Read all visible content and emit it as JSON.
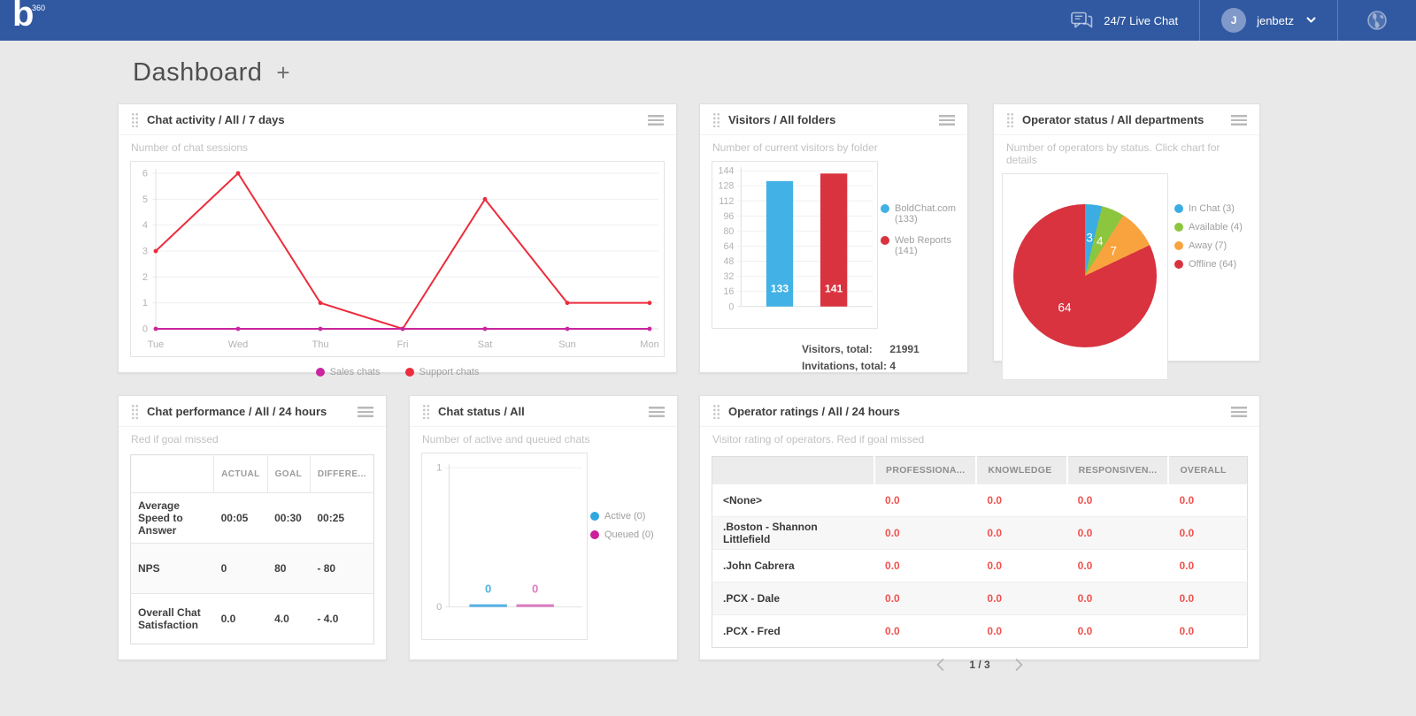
{
  "navbar": {
    "logo_b": "b",
    "logo_360": "360",
    "live_chat_label": "24/7 Live Chat",
    "user_initial": "J",
    "user_name": "jenbetz"
  },
  "page": {
    "title": "Dashboard",
    "add_button": "+"
  },
  "colors": {
    "navbar": "#3159a2",
    "page_bg": "#e9e9e9",
    "good": "#82c341",
    "bad": "#f0524e"
  },
  "widgets": {
    "chat_activity": {
      "title": "Chat activity / All / 7 days",
      "subtitle": "Number of chat sessions",
      "legend": [
        {
          "label": "Sales chats",
          "color": "#c9259f"
        },
        {
          "label": "Support chats",
          "color": "#ec2c3c"
        }
      ]
    },
    "visitors": {
      "title": "Visitors / All folders",
      "subtitle": "Number of current visitors by folder",
      "legend": [
        {
          "label": "BoldChat.com (133)",
          "color": "#41b1e6"
        },
        {
          "label": "Web Reports (141)",
          "color": "#d8333f"
        }
      ],
      "totals": [
        {
          "label": "Visitors, total:",
          "value": "21991"
        },
        {
          "label": "Invitations, total:",
          "value": "4"
        }
      ]
    },
    "operator_status": {
      "title": "Operator status / All departments",
      "subtitle": "Number of operators by status. Click chart for details",
      "legend": [
        {
          "label": "In Chat (3)",
          "color": "#3bade3"
        },
        {
          "label": "Available (4)",
          "color": "#8cc63f"
        },
        {
          "label": "Away (7)",
          "color": "#f8a33e"
        },
        {
          "label": "Offline (64)",
          "color": "#d8333f"
        }
      ]
    },
    "chat_performance": {
      "title": "Chat performance / All / 24 hours",
      "subtitle": "Red if goal missed",
      "columns": [
        "",
        "ACTUAL",
        "GOAL",
        "DIFFERE..."
      ],
      "rows": [
        {
          "label": "Average Speed to Answer",
          "actual": "00:05",
          "goal": "00:30",
          "diff": "00:25"
        },
        {
          "label": "NPS",
          "actual": "0",
          "goal": "80",
          "diff": "- 80"
        },
        {
          "label": "Overall Chat Satisfaction",
          "actual": "0.0",
          "goal": "4.0",
          "diff": "- 4.0"
        }
      ]
    },
    "chat_status": {
      "title": "Chat status / All",
      "subtitle": "Number of active and queued chats",
      "legend": [
        {
          "label": "Active (0)",
          "color": "#2fa8e0"
        },
        {
          "label": "Queued (0)",
          "color": "#cb1f9b"
        }
      ]
    },
    "operator_ratings": {
      "title": "Operator ratings / All / 24 hours",
      "subtitle": "Visitor rating of operators. Red if goal missed",
      "columns": [
        "",
        "PROFESSIONA...",
        "KNOWLEDGE",
        "RESPONSIVEN...",
        "OVERALL"
      ],
      "rows": [
        {
          "name": "<None>",
          "values": [
            "0.0",
            "0.0",
            "0.0",
            "0.0"
          ]
        },
        {
          "name": ".Boston - Shannon Littlefield",
          "values": [
            "0.0",
            "0.0",
            "0.0",
            "0.0"
          ]
        },
        {
          "name": ".John Cabrera",
          "values": [
            "0.0",
            "0.0",
            "0.0",
            "0.0"
          ]
        },
        {
          "name": ".PCX - Dale",
          "values": [
            "0.0",
            "0.0",
            "0.0",
            "0.0"
          ]
        },
        {
          "name": ".PCX - Fred",
          "values": [
            "0.0",
            "0.0",
            "0.0",
            "0.0"
          ]
        }
      ],
      "pagination": "1 / 3"
    }
  },
  "chart_data": [
    {
      "id": "chat_activity",
      "type": "line",
      "title": "Chat activity / All / 7 days",
      "x": [
        "Tue",
        "Wed",
        "Thu",
        "Fri",
        "Sat",
        "Sun",
        "Mon"
      ],
      "series": [
        {
          "name": "Sales chats",
          "color": "#c9259f",
          "values": [
            0,
            0,
            0,
            0,
            0,
            0,
            0
          ]
        },
        {
          "name": "Support chats",
          "color": "#ec2c3c",
          "values": [
            3,
            6,
            1,
            0,
            5,
            1,
            1
          ]
        }
      ],
      "ylim": [
        0,
        6
      ],
      "yticks": [
        0,
        1,
        2,
        3,
        4,
        5,
        6
      ],
      "grid": true,
      "legend_position": "bottom"
    },
    {
      "id": "visitors",
      "type": "bar",
      "title": "Visitors / All folders",
      "categories": [
        "BoldChat.com",
        "Web Reports"
      ],
      "values": [
        133,
        141
      ],
      "colors": [
        "#41b1e6",
        "#d8333f"
      ],
      "ylim": [
        0,
        144
      ],
      "yticks": [
        0,
        16,
        32,
        48,
        64,
        80,
        96,
        112,
        128,
        144
      ],
      "grid": true,
      "legend": [
        "BoldChat.com (133)",
        "Web Reports (141)"
      ],
      "legend_position": "right",
      "totals": {
        "Visitors, total": 21991,
        "Invitations, total": 4
      }
    },
    {
      "id": "operator_status",
      "type": "pie",
      "title": "Operator status / All departments",
      "labels": [
        "In Chat",
        "Available",
        "Away",
        "Offline"
      ],
      "values": [
        3,
        4,
        7,
        64
      ],
      "colors": [
        "#3bade3",
        "#8cc63f",
        "#f8a33e",
        "#d8333f"
      ],
      "legend": [
        "In Chat (3)",
        "Available (4)",
        "Away (7)",
        "Offline (64)"
      ],
      "legend_position": "right"
    },
    {
      "id": "chat_status",
      "type": "bar",
      "title": "Chat status / All",
      "categories": [
        "Active",
        "Queued"
      ],
      "values": [
        0,
        0
      ],
      "bar_colors": [
        "#54b1e4",
        "#dc7cc0"
      ],
      "ylim": [
        0,
        1
      ],
      "yticks": [
        0,
        1
      ],
      "grid": true,
      "legend": [
        "Active (0)",
        "Queued (0)"
      ],
      "legend_position": "right"
    },
    {
      "id": "chat_performance",
      "type": "table",
      "title": "Chat performance / All / 24 hours",
      "columns": [
        "",
        "ACTUAL",
        "GOAL",
        "DIFFERENCE"
      ],
      "rows": [
        [
          "Average Speed to Answer",
          "00:05",
          "00:30",
          "00:25"
        ],
        [
          "NPS",
          "0",
          "80",
          "- 80"
        ],
        [
          "Overall Chat Satisfaction",
          "0.0",
          "4.0",
          "- 4.0"
        ]
      ]
    },
    {
      "id": "operator_ratings",
      "type": "table",
      "title": "Operator ratings / All / 24 hours",
      "columns": [
        "",
        "PROFESSIONALISM",
        "KNOWLEDGE",
        "RESPONSIVENESS",
        "OVERALL"
      ],
      "rows": [
        [
          "<None>",
          0.0,
          0.0,
          0.0,
          0.0
        ],
        [
          ".Boston - Shannon Littlefield",
          0.0,
          0.0,
          0.0,
          0.0
        ],
        [
          ".John Cabrera",
          0.0,
          0.0,
          0.0,
          0.0
        ],
        [
          ".PCX - Dale",
          0.0,
          0.0,
          0.0,
          0.0
        ],
        [
          ".PCX - Fred",
          0.0,
          0.0,
          0.0,
          0.0
        ]
      ],
      "page": "1 / 3"
    }
  ]
}
